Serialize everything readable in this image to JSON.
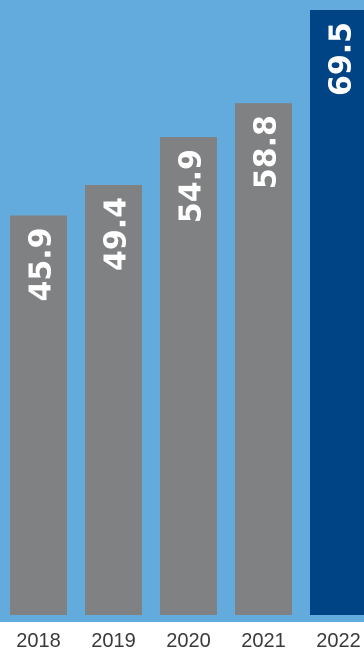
{
  "chart_data": {
    "type": "bar",
    "categories": [
      "2018",
      "2019",
      "2020",
      "2021",
      "2022"
    ],
    "values": [
      45.9,
      49.4,
      54.9,
      58.8,
      69.5
    ],
    "value_labels": [
      "45.9",
      "49.4",
      "54.9",
      "58.8",
      "69.5"
    ],
    "highlight_index": 4,
    "ylim": [
      0,
      69.5
    ],
    "grid": false,
    "legend": "none"
  },
  "colors": {
    "background": "#64ABDD",
    "bar": "#808183",
    "highlight_bar": "#014486",
    "value_label": "#ffffff",
    "tick_label": "#3a3a3a"
  }
}
